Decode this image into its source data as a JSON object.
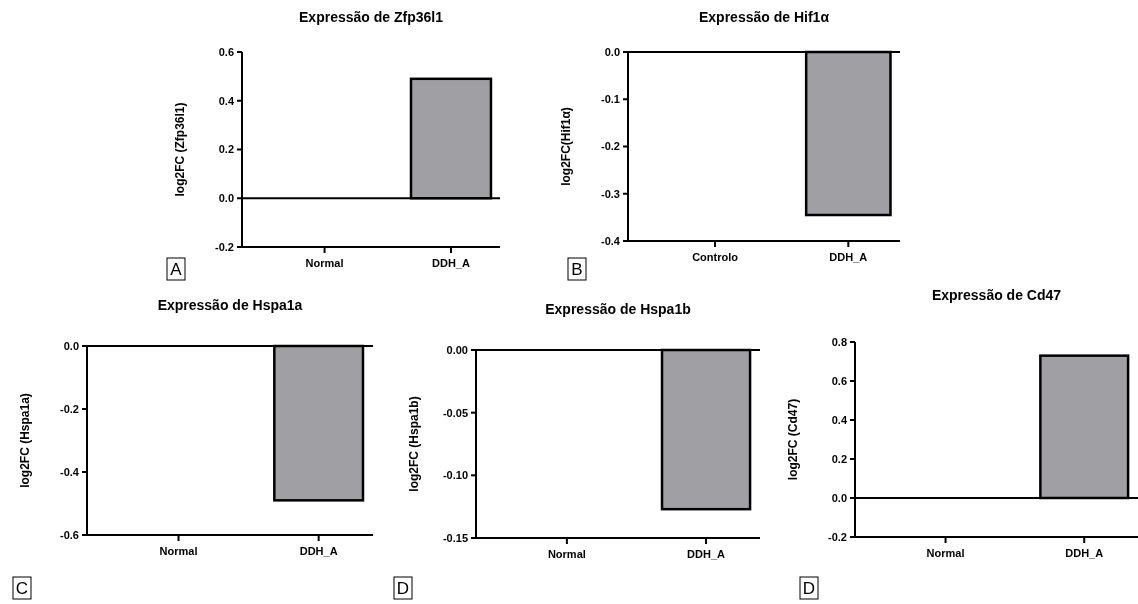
{
  "chart_data": [
    {
      "type": "bar",
      "title": "Expressão de Zfp36l1",
      "ylabel": "log2FC (Zfp36l1)",
      "categories": [
        "Normal",
        "DDH_A"
      ],
      "values": [
        0,
        0.49
      ],
      "color": "#a0a0a4",
      "ylim": [
        -0.2,
        0.6
      ],
      "yticks": [
        {
          "value": -0.2,
          "label": "-0.2"
        },
        {
          "value": 0,
          "label": "0.0"
        },
        0.2,
        0.4,
        0.6
      ],
      "annotations": [
        "A"
      ]
    },
    {
      "type": "bar",
      "title": "Expressão de Hif1α",
      "ylabel": "log2FC(Hif1α)",
      "categories": [
        "Controlo",
        "DDH_A"
      ],
      "values": [
        0,
        -0.345
      ],
      "color": "#a0a0a4",
      "ylim": [
        -0.4,
        0
      ],
      "yticks": [
        -0.4,
        -0.3,
        -0.2,
        -0.1,
        {
          "value": 0,
          "label": "0.0"
        }
      ],
      "annotations": [
        "B"
      ]
    },
    {
      "type": "bar",
      "title": "Expressão de Hspa1a",
      "ylabel": "log2FC (Hspa1a)",
      "categories": [
        "Normal",
        "DDH_A"
      ],
      "values": [
        0,
        -0.49
      ],
      "color": "#a0a0a4",
      "ylim": [
        -0.6,
        0
      ],
      "yticks": [
        -0.6,
        -0.4,
        -0.2,
        {
          "value": 0,
          "label": "0.0"
        }
      ],
      "annotations": [
        "C"
      ]
    },
    {
      "type": "bar",
      "title": "Expressão de Hspa1b",
      "ylabel": "log2FC (Hspa1b)",
      "categories": [
        "Normal",
        "DDH_A"
      ],
      "values": [
        0,
        -0.127
      ],
      "color": "#a0a0a4",
      "ylim": [
        -0.15,
        0
      ],
      "yticks": [
        -0.15,
        {
          "value": -0.1,
          "label": "-0.10"
        },
        -0.05,
        {
          "value": 0,
          "label": "0.00"
        }
      ],
      "annotations": [
        "D"
      ]
    },
    {
      "type": "bar",
      "title": "Expressão de Cd47",
      "ylabel": "log2FC (Cd47)",
      "categories": [
        "Normal",
        "DDH_A"
      ],
      "values": [
        0,
        0.73
      ],
      "color": "#a0a0a4",
      "ylim": [
        -0.2,
        0.8
      ],
      "yticks": [
        {
          "value": -0.2,
          "label": "-0.2"
        },
        {
          "value": 0,
          "label": "0.0"
        },
        0.2,
        0.4,
        0.6,
        0.8
      ],
      "annotations": [
        "D"
      ]
    }
  ]
}
